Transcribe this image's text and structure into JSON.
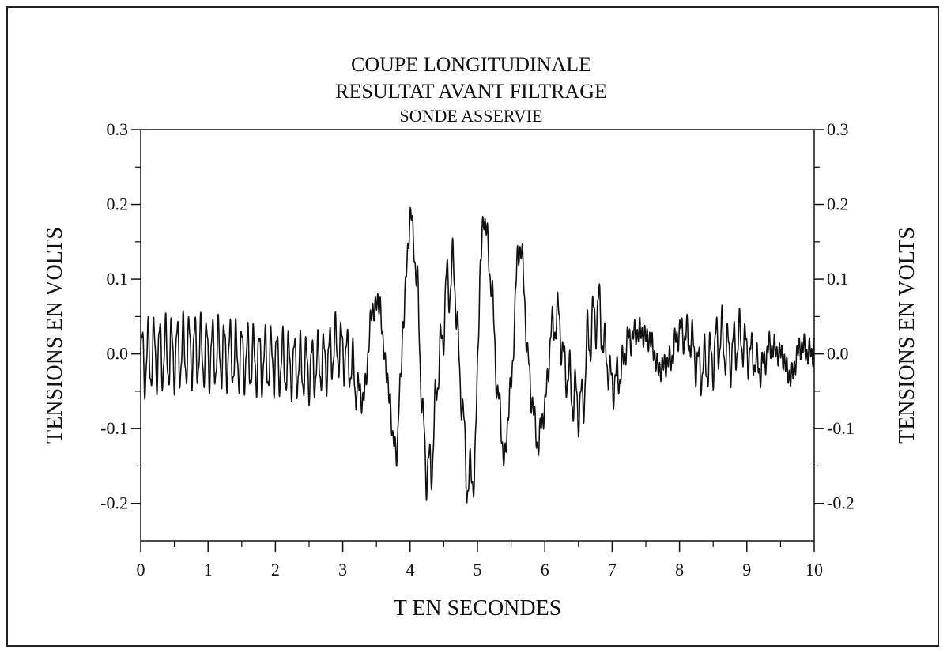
{
  "chart_data": {
    "type": "line",
    "title": [
      "COUPE LONGITUDINALE",
      "RESULTAT AVANT FILTRAGE",
      "SONDE ASSERVIE"
    ],
    "xlabel": "T EN SECONDES",
    "ylabel": "TENSIONS EN VOLTS",
    "ylabel_right": "TENSIONS EN VOLTS",
    "xlim": [
      0,
      10
    ],
    "ylim": [
      -0.25,
      0.3
    ],
    "x_ticks": [
      0,
      1,
      2,
      3,
      4,
      5,
      6,
      7,
      8,
      9,
      10
    ],
    "x_tick_labels": [
      "0",
      "1",
      "2",
      "3",
      "4",
      "5",
      "6",
      "7",
      "8",
      "9",
      "10"
    ],
    "y_ticks": [
      0.3,
      0.2,
      0.1,
      0.0,
      -0.1,
      -0.2
    ],
    "y_tick_labels": [
      "0.3",
      "0.2",
      "0.1",
      "0.0",
      "-0.1",
      "-0.2"
    ],
    "grid": false,
    "legend": "none",
    "series": [
      {
        "color": "#111111",
        "x": [
          0.0,
          0.25,
          0.5,
          0.75,
          1.0,
          1.25,
          1.5,
          1.75,
          2.0,
          2.25,
          2.5,
          2.75,
          2.9,
          3.0,
          3.1,
          3.2,
          3.3,
          3.45,
          3.55,
          3.6,
          3.7,
          3.75,
          3.8,
          3.85,
          3.9,
          4.0,
          4.05,
          4.1,
          4.2,
          4.25,
          4.3,
          4.45,
          4.55,
          4.65,
          4.75,
          4.85,
          4.95,
          5.05,
          5.1,
          5.2,
          5.3,
          5.4,
          5.5,
          5.6,
          5.65,
          5.75,
          5.8,
          5.9,
          6.0,
          6.1,
          6.2,
          6.3,
          6.45,
          6.55,
          6.65,
          6.75,
          6.8,
          6.9,
          7.0,
          7.1,
          7.25,
          7.4,
          7.55,
          7.7,
          7.85,
          8.0,
          8.15,
          8.3,
          8.45,
          8.6,
          8.75,
          8.9,
          9.05,
          9.2,
          9.35,
          9.5,
          9.65,
          9.8,
          9.95,
          10.0
        ],
        "y": [
          -0.01,
          0.0,
          0.0,
          0.005,
          0.0,
          0.0,
          -0.005,
          -0.01,
          -0.01,
          -0.015,
          -0.02,
          -0.01,
          0.01,
          0.005,
          -0.01,
          -0.04,
          -0.06,
          0.06,
          0.07,
          0.01,
          -0.06,
          -0.12,
          -0.13,
          -0.05,
          0.05,
          0.18,
          0.16,
          0.09,
          -0.1,
          -0.16,
          -0.15,
          0.0,
          0.09,
          0.11,
          -0.04,
          -0.17,
          -0.16,
          0.12,
          0.19,
          0.1,
          -0.05,
          -0.14,
          -0.04,
          0.13,
          0.14,
          0.0,
          -0.06,
          -0.12,
          -0.07,
          0.03,
          0.05,
          -0.02,
          -0.06,
          -0.07,
          0.02,
          0.05,
          0.06,
          0.0,
          -0.04,
          -0.03,
          0.02,
          0.03,
          0.02,
          -0.02,
          -0.01,
          0.03,
          0.02,
          -0.02,
          -0.01,
          0.02,
          0.0,
          0.02,
          0.0,
          -0.02,
          0.01,
          0.0,
          -0.03,
          0.01,
          0.0,
          0.01
        ]
      }
    ]
  }
}
